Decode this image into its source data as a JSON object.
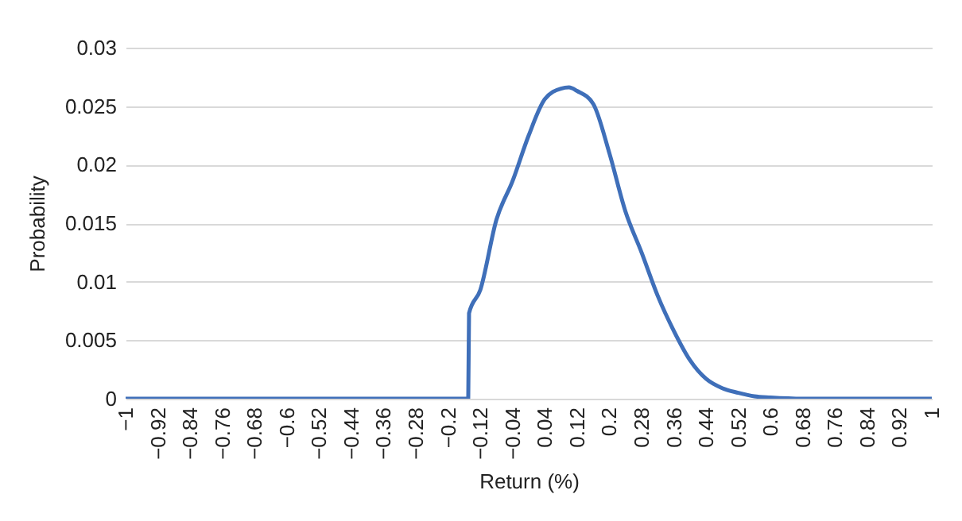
{
  "chart_data": {
    "type": "line",
    "xlabel": "Return (%)",
    "ylabel": "Probability",
    "x": [
      -1,
      -0.6,
      -0.2,
      -0.15,
      -0.148,
      -0.12,
      -0.08,
      -0.04,
      0,
      0.04,
      0.08,
      0.1,
      0.12,
      0.16,
      0.2,
      0.24,
      0.28,
      0.32,
      0.36,
      0.4,
      0.44,
      0.48,
      0.52,
      0.56,
      0.6,
      0.68,
      1
    ],
    "series": [
      {
        "color": "#3f6fb9",
        "values": [
          0,
          0,
          0,
          0,
          0.0073,
          0.0093,
          0.0153,
          0.0186,
          0.0225,
          0.0256,
          0.0265,
          0.0266,
          0.0263,
          0.0252,
          0.021,
          0.016,
          0.0125,
          0.0088,
          0.0058,
          0.0033,
          0.0017,
          0.0009,
          0.0005,
          0.0002,
          0.0001,
          0,
          0
        ]
      }
    ],
    "xlim": [
      -1,
      1
    ],
    "xticks": [
      {
        "value": -1,
        "label": "−1"
      },
      {
        "value": -0.92,
        "label": "−0.92"
      },
      {
        "value": -0.84,
        "label": "−0.84"
      },
      {
        "value": -0.76,
        "label": "−0.76"
      },
      {
        "value": -0.68,
        "label": "−0.68"
      },
      {
        "value": -0.6,
        "label": "−0.6"
      },
      {
        "value": -0.52,
        "label": "−0.52"
      },
      {
        "value": -0.44,
        "label": "−0.44"
      },
      {
        "value": -0.36,
        "label": "−0.36"
      },
      {
        "value": -0.28,
        "label": "−0.28"
      },
      {
        "value": -0.2,
        "label": "−0.2"
      },
      {
        "value": -0.12,
        "label": "−0.12"
      },
      {
        "value": -0.04,
        "label": "−0.04"
      },
      0.04,
      0.12,
      0.2,
      0.28,
      0.36,
      0.44,
      0.52,
      0.6,
      0.68,
      0.76,
      0.84,
      0.92,
      1
    ],
    "ylim": [
      0,
      0.03
    ],
    "yticks": [
      0,
      0.005,
      0.01,
      0.015,
      0.02,
      0.025,
      0.03
    ],
    "grid": "y",
    "marker": "none",
    "line_style": "solid"
  }
}
